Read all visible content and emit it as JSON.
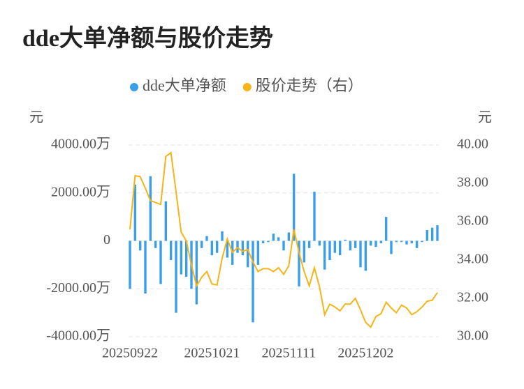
{
  "chart_data": {
    "type": "bar-line",
    "title": "dde大单净额与股价走势",
    "y_unit": "元",
    "y2_unit": "元",
    "grid": true,
    "categories": [
      "20250922",
      null,
      null,
      null,
      null,
      null,
      null,
      null,
      null,
      null,
      null,
      null,
      null,
      null,
      null,
      null,
      "20251021",
      null,
      null,
      null,
      null,
      null,
      null,
      null,
      null,
      null,
      null,
      null,
      null,
      null,
      null,
      "20251111",
      null,
      null,
      null,
      null,
      null,
      null,
      null,
      null,
      null,
      null,
      null,
      null,
      null,
      null,
      "20251202",
      null,
      null,
      null,
      null,
      null,
      null,
      null,
      null,
      null,
      null,
      null,
      null,
      null,
      null
    ],
    "ylim": [
      -4000,
      4000
    ],
    "yticks": [
      {
        "value": 4000,
        "label": "4000.00万"
      },
      {
        "value": 2000,
        "label": "2000.00万"
      },
      0,
      {
        "value": -2000,
        "label": "-2000.00万"
      },
      {
        "value": -4000,
        "label": "-4000.00万"
      }
    ],
    "y2lim": [
      30,
      40
    ],
    "y2ticks": [
      {
        "value": 40,
        "label": "40.00"
      },
      {
        "value": 38,
        "label": "38.00"
      },
      {
        "value": 36,
        "label": "36.00"
      },
      {
        "value": 34,
        "label": "34.00"
      },
      {
        "value": 32,
        "label": "32.00"
      },
      {
        "value": 30,
        "label": "30.00"
      }
    ],
    "series": [
      {
        "name": "dde大单净额",
        "type": "bar",
        "color": "#3a9ee8",
        "values": [
          -2000,
          2350,
          -400,
          -2200,
          2700,
          -300,
          -1800,
          1650,
          -800,
          -3000,
          -1400,
          -1500,
          -2000,
          -2650,
          -300,
          200,
          -600,
          -500,
          400,
          -700,
          -1000,
          -500,
          -600,
          -1100,
          -3400,
          -1000,
          -100,
          -50,
          300,
          150,
          -400,
          350,
          2800,
          -1900,
          -900,
          -300,
          2050,
          -200,
          -1200,
          -800,
          -500,
          -600,
          50,
          -400,
          -300,
          -1100,
          -1250,
          -200,
          -250,
          -100,
          1000,
          -550,
          -50,
          -50,
          -150,
          -100,
          -300,
          -50,
          450,
          550,
          650
        ]
      },
      {
        "name": "股价走势（右）",
        "type": "line",
        "axis": "y2",
        "color": "#f5b417",
        "values": [
          35.6,
          38.4,
          38.35,
          37.75,
          37.1,
          37.0,
          36.9,
          39.4,
          39.6,
          37.55,
          35.45,
          35.0,
          33.75,
          32.65,
          33.1,
          33.4,
          32.75,
          32.7,
          34.1,
          35.1,
          34.4,
          34.65,
          34.45,
          34.55,
          33.9,
          33.4,
          33.55,
          33.55,
          33.4,
          33.6,
          33.25,
          33.7,
          35.6,
          34.4,
          33.4,
          32.65,
          33.6,
          32.6,
          31.15,
          31.7,
          31.55,
          31.35,
          31.7,
          31.7,
          32.0,
          31.4,
          30.75,
          30.5,
          31.05,
          31.2,
          31.8,
          31.5,
          31.25,
          31.65,
          31.5,
          31.15,
          31.3,
          31.55,
          31.85,
          31.9,
          32.3
        ]
      }
    ]
  }
}
